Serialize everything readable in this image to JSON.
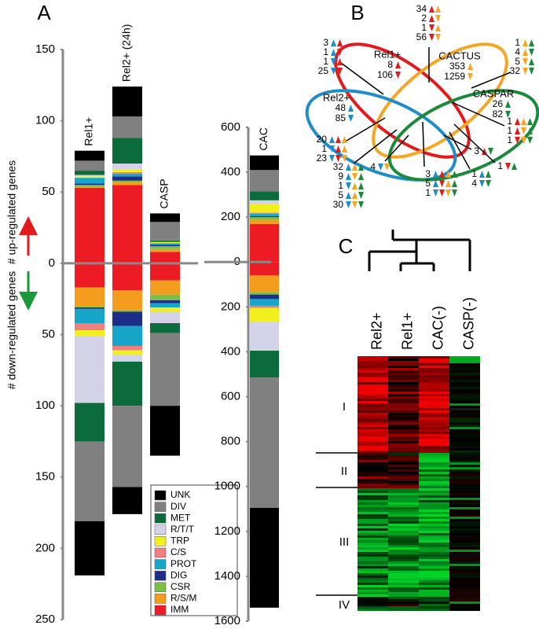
{
  "chart_data": [
    {
      "type": "stacked-bar",
      "title": "A",
      "y_label_up": "# up-regulated genes",
      "y_label_down": "# down-regulated genes",
      "categories": [
        "Rel1+",
        "Rel2+ (24h)",
        "CASP"
      ],
      "ylim": [
        -250,
        150
      ],
      "yticks": [
        150,
        100,
        50,
        0,
        {
          "value": -50,
          "label": "50"
        },
        {
          "value": -100,
          "label": "100"
        },
        {
          "value": -150,
          "label": "150"
        },
        {
          "value": -200,
          "label": "200"
        },
        {
          "value": -250,
          "label": "250"
        }
      ],
      "legend": "bottom-right",
      "series": [
        {
          "name": "UNK",
          "color": "#000000",
          "values": [
            7,
            21,
            6
          ],
          "down_values": [
            -38,
            -19,
            -35
          ]
        },
        {
          "name": "DIV",
          "color": "#808080",
          "values": [
            7,
            15,
            13
          ],
          "down_values": [
            -56,
            -57,
            -51
          ]
        },
        {
          "name": "MET",
          "color": "#0b6b3a",
          "values": [
            3,
            18,
            1
          ],
          "down_values": [
            -27,
            -31,
            -7
          ]
        },
        {
          "name": "R/T/T",
          "color": "#d4d2e8",
          "values": [
            1,
            4,
            0
          ],
          "down_values": [
            -47,
            -5,
            -8
          ]
        },
        {
          "name": "TRP",
          "color": "#f2ef1c",
          "values": [
            1,
            2,
            1
          ],
          "down_values": [
            -4,
            -3,
            -3
          ]
        },
        {
          "name": "C/S",
          "color": "#f08080",
          "values": [
            0,
            1,
            0
          ],
          "down_values": [
            -5,
            -3,
            0
          ]
        },
        {
          "name": "PROT",
          "color": "#17a6c8",
          "values": [
            4,
            2,
            1
          ],
          "down_values": [
            -10,
            -14,
            -3
          ]
        },
        {
          "name": "DIG",
          "color": "#1f2d8a",
          "values": [
            1,
            3,
            1
          ],
          "down_values": [
            -1,
            -10,
            -2
          ]
        },
        {
          "name": "CSR",
          "color": "#7ac143",
          "values": [
            1,
            1,
            2
          ],
          "down_values": [
            -1,
            -1,
            -4
          ]
        },
        {
          "name": "R/S/M",
          "color": "#f39c1d",
          "values": [
            1,
            2,
            2
          ],
          "down_values": [
            -13,
            -14,
            -10
          ]
        },
        {
          "name": "IMM",
          "color": "#ed1c24",
          "values": [
            53,
            55,
            8
          ],
          "down_values": [
            -17,
            -19,
            -12
          ]
        }
      ]
    },
    {
      "type": "stacked-bar",
      "categories": [
        "CAC"
      ],
      "ylim": [
        -1600,
        600
      ],
      "yticks": [
        600,
        400,
        200,
        0,
        {
          "value": -200,
          "label": "200"
        },
        {
          "value": -400,
          "label": "400"
        },
        {
          "value": -600,
          "label": "600"
        },
        {
          "value": -800,
          "label": "800"
        },
        {
          "value": -1000,
          "label": "1000"
        },
        {
          "value": -1200,
          "label": "1200"
        },
        {
          "value": -1400,
          "label": "1400"
        },
        {
          "value": -1600,
          "label": "1600"
        }
      ],
      "series": [
        {
          "color": "#000000",
          "values": [
            65
          ],
          "down_values": [
            -445
          ]
        },
        {
          "color": "#808080",
          "values": [
            95
          ],
          "down_values": [
            -580
          ]
        },
        {
          "color": "#0b6b3a",
          "values": [
            40
          ],
          "down_values": [
            -120
          ]
        },
        {
          "color": "#d4d2e8",
          "values": [
            15
          ],
          "down_values": [
            -130
          ]
        },
        {
          "color": "#f2ef1c",
          "values": [
            40
          ],
          "down_values": [
            -60
          ]
        },
        {
          "color": "#f08080",
          "values": [
            5
          ],
          "down_values": [
            -10
          ]
        },
        {
          "color": "#17a6c8",
          "values": [
            10
          ],
          "down_values": [
            -30
          ]
        },
        {
          "color": "#1f2d8a",
          "values": [
            5
          ],
          "down_values": [
            -20
          ]
        },
        {
          "color": "#7ac143",
          "values": [
            10
          ],
          "down_values": [
            -10
          ]
        },
        {
          "color": "#f39c1d",
          "values": [
            20
          ],
          "down_values": [
            -75
          ]
        },
        {
          "color": "#ed1c24",
          "values": [
            170
          ],
          "down_values": [
            -60
          ]
        }
      ]
    },
    {
      "type": "venn",
      "title": "B",
      "sets": [
        {
          "name": "Rel1+",
          "color": "#e31a1c",
          "up": 8,
          "down": 106
        },
        {
          "name": "CACTUS",
          "color": "#f5a623",
          "up": 353,
          "down": 1259
        },
        {
          "name": "Rel2+",
          "color": "#1f8dc8",
          "up": 48,
          "down": 85
        },
        {
          "name": "CASPAR",
          "color": "#1a8a3a",
          "up": 26,
          "down": 82
        }
      ],
      "regions": [
        [
          34,
          2,
          1,
          56
        ],
        [
          3,
          1,
          1,
          25
        ],
        [
          1,
          4,
          5,
          32
        ],
        [
          1,
          1,
          1
        ],
        [
          20,
          1,
          23
        ],
        [
          32,
          9,
          1,
          5,
          30
        ],
        [
          4
        ],
        [
          3,
          5,
          1
        ],
        [
          1,
          4
        ],
        [
          3
        ],
        [
          1
        ]
      ]
    },
    {
      "type": "heatmap",
      "title": "C",
      "columns": [
        "Rel2+",
        "Rel1+",
        "CAC(-)",
        "CASP(-)"
      ],
      "clusters": [
        "I",
        "II",
        "III",
        "IV"
      ]
    }
  ]
}
